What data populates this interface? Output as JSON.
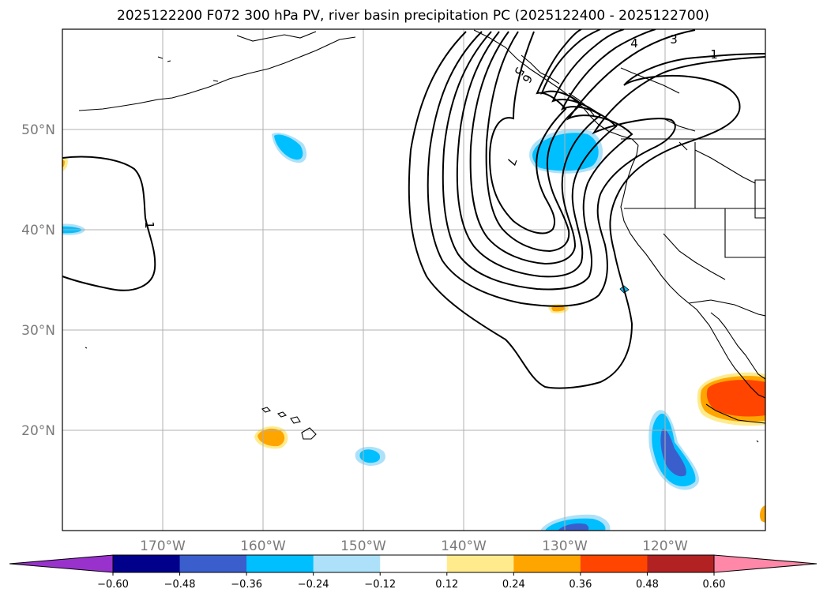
{
  "title": "2025122200 F072 300 hPa PV, river basin precipitation PC (2025122400 - 2025122700)",
  "map": {
    "lon_range": [
      -180,
      -110
    ],
    "lat_range": [
      10,
      60
    ],
    "lat_ticks": [
      {
        "value": 50,
        "label": "50°N"
      },
      {
        "value": 40,
        "label": "40°N"
      },
      {
        "value": 30,
        "label": "30°N"
      },
      {
        "value": 20,
        "label": "20°N"
      }
    ],
    "lon_ticks": [
      {
        "value": -170,
        "label": "170°W"
      },
      {
        "value": -160,
        "label": "160°W"
      },
      {
        "value": -150,
        "label": "150°W"
      },
      {
        "value": -140,
        "label": "140°W"
      },
      {
        "value": -130,
        "label": "130°W"
      },
      {
        "value": -120,
        "label": "120°W"
      }
    ]
  },
  "contour_labels": [
    {
      "text": "1",
      "lon": -112.5,
      "lat": 56.7
    },
    {
      "text": "3",
      "lon": -119.5,
      "lat": 58.7
    },
    {
      "text": "4",
      "lon": -123.5,
      "lat": 58.4
    },
    {
      "text": "1",
      "lon": -171.7,
      "lat": 40.5
    },
    {
      "text": "7",
      "lon": -135.3,
      "lat": 47.3
    },
    {
      "text": "6",
      "lon": -136.0,
      "lat": 55.9
    },
    {
      "text": "5",
      "lon": -136.6,
      "lat": 56.6
    }
  ],
  "colorbar": {
    "ticks": [
      "−0.60",
      "−0.48",
      "−0.36",
      "−0.24",
      "−0.12",
      "0.12",
      "0.24",
      "0.36",
      "0.48",
      "0.60"
    ],
    "colors": [
      "#9932CC",
      "#00008B",
      "#3A5FCD",
      "#00BFFF",
      "#ADE1F9",
      "#FFFFFF",
      "#FFEB8C",
      "#FFA500",
      "#FF4500",
      "#B22222",
      "#FF88A8"
    ]
  }
}
